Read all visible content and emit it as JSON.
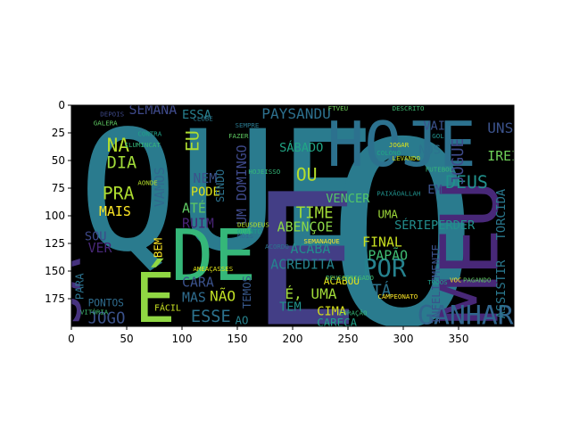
{
  "figure": {
    "image_background": "#000000",
    "x_ticks": [
      "0",
      "50",
      "100",
      "150",
      "200",
      "250",
      "300",
      "350"
    ],
    "y_ticks": [
      "0",
      "25",
      "50",
      "75",
      "100",
      "125",
      "150",
      "175"
    ],
    "x_tick_values": [
      0,
      50,
      100,
      150,
      200,
      250,
      300,
      350
    ],
    "y_tick_values": [
      0,
      25,
      50,
      75,
      100,
      125,
      150,
      175
    ],
    "xlim": [
      0,
      400
    ],
    "ylim": [
      0,
      200
    ],
    "y_inverted": true
  },
  "wordcloud": {
    "words": [
      {
        "text": "QUE",
        "x": 6,
        "y": 130,
        "size": 150,
        "color": "#2a7b8e",
        "rotate": 0
      },
      {
        "text": "O",
        "x": 230,
        "y": 198,
        "size": 230,
        "color": "#2a7b8e",
        "rotate": 0
      },
      {
        "text": "E",
        "x": 162,
        "y": 198,
        "size": 165,
        "color": "#433e86",
        "rotate": 0
      },
      {
        "text": "HOJE",
        "x": 231,
        "y": 55,
        "size": 56,
        "color": "#2c718e",
        "rotate": 0
      },
      {
        "text": "DE",
        "x": 90,
        "y": 158,
        "size": 64,
        "color": "#35b779",
        "rotate": 0
      },
      {
        "text": "É",
        "x": 57,
        "y": 196,
        "size": 62,
        "color": "#90d743",
        "rotate": 0
      },
      {
        "text": "JÁ",
        "x": 8,
        "y": 198,
        "size": 50,
        "color": "#46327e",
        "rotate": -90
      },
      {
        "text": "MEU",
        "x": 385,
        "y": 198,
        "size": 72,
        "color": "#482878",
        "rotate": -90
      },
      {
        "text": "GANHAR",
        "x": 313,
        "y": 198,
        "size": 24,
        "color": "#31668e",
        "rotate": 0
      },
      {
        "text": "POR",
        "x": 263,
        "y": 155,
        "size": 22,
        "color": "#26828e",
        "rotate": 0
      },
      {
        "text": "DEUS",
        "x": 338,
        "y": 75,
        "size": 16,
        "color": "#21918c",
        "rotate": 0
      },
      {
        "text": "JOGUE",
        "x": 354,
        "y": 72,
        "size": 14,
        "color": "#3e4a89",
        "rotate": -90
      },
      {
        "text": "UNS",
        "x": 376,
        "y": 25,
        "size": 13,
        "color": "#3b528b",
        "rotate": 0
      },
      {
        "text": "IREI",
        "x": 376,
        "y": 50,
        "size": 12,
        "color": "#6ece58",
        "rotate": 0
      },
      {
        "text": "NA",
        "x": 32,
        "y": 42,
        "size": 17,
        "color": "#b5de2b",
        "rotate": 0
      },
      {
        "text": "DIA",
        "x": 32,
        "y": 57,
        "size": 15,
        "color": "#a0da39",
        "rotate": 0
      },
      {
        "text": "PRA",
        "x": 28,
        "y": 85,
        "size": 16,
        "color": "#addc30",
        "rotate": 0
      },
      {
        "text": "MAIS",
        "x": 25,
        "y": 100,
        "size": 12,
        "color": "#fde725",
        "rotate": 0
      },
      {
        "text": "VAMOS",
        "x": 84,
        "y": 92,
        "size": 12,
        "color": "#31688e",
        "rotate": -90
      },
      {
        "text": "SEMANA",
        "x": 52,
        "y": 8,
        "size": 12,
        "color": "#3e4989",
        "rotate": 0
      },
      {
        "text": "ESSA",
        "x": 100,
        "y": 12,
        "size": 11,
        "color": "#277f8e",
        "rotate": 0
      },
      {
        "text": "PAYSANDU",
        "x": 172,
        "y": 12,
        "size": 13,
        "color": "#2d708e",
        "rotate": 0
      },
      {
        "text": "EU",
        "x": 115,
        "y": 42,
        "size": 16,
        "color": "#addc30",
        "rotate": -90
      },
      {
        "text": "NEM",
        "x": 110,
        "y": 70,
        "size": 12,
        "color": "#3b528b",
        "rotate": 0
      },
      {
        "text": "PODE",
        "x": 108,
        "y": 82,
        "size": 11,
        "color": "#dde318",
        "rotate": 0
      },
      {
        "text": "ATÉ",
        "x": 100,
        "y": 97,
        "size": 12,
        "color": "#5ec962",
        "rotate": 0
      },
      {
        "text": "RUIM",
        "x": 100,
        "y": 111,
        "size": 12,
        "color": "#482475",
        "rotate": 0
      },
      {
        "text": "UM DOMINGO",
        "x": 158,
        "y": 108,
        "size": 12,
        "color": "#3e4989",
        "rotate": -90
      },
      {
        "text": "SÁBADO",
        "x": 188,
        "y": 42,
        "size": 11,
        "color": "#21a585",
        "rotate": 0
      },
      {
        "text": "OU",
        "x": 203,
        "y": 68,
        "size": 16,
        "color": "#b5de2b",
        "rotate": 0
      },
      {
        "text": "NOS",
        "x": 314,
        "y": 44,
        "size": 11,
        "color": "#2c728e",
        "rotate": 0
      },
      {
        "text": "VAI",
        "x": 318,
        "y": 22,
        "size": 11,
        "color": "#3b528b",
        "rotate": 0
      },
      {
        "text": "VENCER",
        "x": 230,
        "y": 88,
        "size": 11,
        "color": "#52c569",
        "rotate": 0
      },
      {
        "text": "TIME",
        "x": 203,
        "y": 102,
        "size": 14,
        "color": "#a2da37",
        "rotate": 0
      },
      {
        "text": "ABENÇOE",
        "x": 186,
        "y": 114,
        "size": 12,
        "color": "#8bd646",
        "rotate": 0
      },
      {
        "text": "ACABA",
        "x": 198,
        "y": 134,
        "size": 12,
        "color": "#228c8d",
        "rotate": 0
      },
      {
        "text": "ACREDITA",
        "x": 180,
        "y": 148,
        "size": 12,
        "color": "#25838e",
        "rotate": 0
      },
      {
        "text": "FINAL",
        "x": 263,
        "y": 128,
        "size": 12,
        "color": "#c8e020",
        "rotate": 0
      },
      {
        "text": "PAPÃO",
        "x": 268,
        "y": 140,
        "size": 12,
        "color": "#3fbc73",
        "rotate": 0
      },
      {
        "text": "SÉRIE",
        "x": 292,
        "y": 112,
        "size": 11,
        "color": "#228d8d",
        "rotate": 0
      },
      {
        "text": "UMA",
        "x": 277,
        "y": 102,
        "size": 10,
        "color": "#9fda3a",
        "rotate": 0
      },
      {
        "text": "PERDER",
        "x": 325,
        "y": 112,
        "size": 11,
        "color": "#21918c",
        "rotate": 0
      },
      {
        "text": "TORCIDA",
        "x": 392,
        "y": 122,
        "size": 11,
        "color": "#2a788e",
        "rotate": -90
      },
      {
        "text": "ASSISTIR",
        "x": 392,
        "y": 193,
        "size": 11,
        "color": "#2a788e",
        "rotate": -90
      },
      {
        "text": "INFELIZMENTE",
        "x": 333,
        "y": 198,
        "size": 10,
        "color": "#3b528b",
        "rotate": -90
      },
      {
        "text": "EM",
        "x": 322,
        "y": 80,
        "size": 11,
        "color": "#3b528b",
        "rotate": 0
      },
      {
        "text": "TÁ",
        "x": 272,
        "y": 172,
        "size": 14,
        "color": "#2c738e",
        "rotate": 0
      },
      {
        "text": "É, UMA",
        "x": 193,
        "y": 175,
        "size": 13,
        "color": "#a0da39",
        "rotate": 0
      },
      {
        "text": "TEM",
        "x": 188,
        "y": 186,
        "size": 11,
        "color": "#21918c",
        "rotate": 0
      },
      {
        "text": "CIMA",
        "x": 222,
        "y": 190,
        "size": 11,
        "color": "#d8e219",
        "rotate": 0
      },
      {
        "text": "CARECA",
        "x": 222,
        "y": 200,
        "size": 10,
        "color": "#1fa188",
        "rotate": 0
      },
      {
        "text": "ACABOU",
        "x": 228,
        "y": 162,
        "size": 9,
        "color": "#e5e419",
        "rotate": 0
      },
      {
        "text": "CARA",
        "x": 100,
        "y": 164,
        "size": 12,
        "color": "#3b528b",
        "rotate": 0
      },
      {
        "text": "MAS",
        "x": 100,
        "y": 178,
        "size": 12,
        "color": "#2f6c8e",
        "rotate": 0
      },
      {
        "text": "NÃO",
        "x": 125,
        "y": 177,
        "size": 13,
        "color": "#c0df25",
        "rotate": 0
      },
      {
        "text": "ESSE",
        "x": 108,
        "y": 196,
        "size": 15,
        "color": "#2c728e",
        "rotate": 0
      },
      {
        "text": "AO",
        "x": 148,
        "y": 198,
        "size": 10,
        "color": "#26828e",
        "rotate": 0
      },
      {
        "text": "TEMOS",
        "x": 162,
        "y": 184,
        "size": 10,
        "color": "#38598c",
        "rotate": -90
      },
      {
        "text": "SENDO",
        "x": 138,
        "y": 88,
        "size": 10,
        "color": "#2c728e",
        "rotate": -90
      },
      {
        "text": "SOU",
        "x": 12,
        "y": 122,
        "size": 11,
        "color": "#3e4989",
        "rotate": 0
      },
      {
        "text": "VER",
        "x": 15,
        "y": 133,
        "size": 12,
        "color": "#482878",
        "rotate": 0
      },
      {
        "text": "BEM",
        "x": 82,
        "y": 138,
        "size": 10,
        "color": "#fde725",
        "rotate": -90
      },
      {
        "text": "PARA",
        "x": 11,
        "y": 176,
        "size": 10,
        "color": "#2c728e",
        "rotate": -90
      },
      {
        "text": "JOGO",
        "x": 15,
        "y": 197,
        "size": 14,
        "color": "#3b528b",
        "rotate": 0
      },
      {
        "text": "PONTOS",
        "x": 15,
        "y": 182,
        "size": 9,
        "color": "#2f6c8e",
        "rotate": 0
      },
      {
        "text": "FÁCIL",
        "x": 75,
        "y": 186,
        "size": 8,
        "color": "#c8e020",
        "rotate": 0
      },
      {
        "text": "JOGAR",
        "x": 287,
        "y": 38,
        "size": 6,
        "color": "#dde318",
        "rotate": 0
      },
      {
        "text": "SEMANAQUE",
        "x": 210,
        "y": 125,
        "size": 6,
        "color": "#fde725",
        "rotate": 0
      },
      {
        "text": "HOJEISSO",
        "x": 160,
        "y": 62,
        "size": 6,
        "color": "#35b779",
        "rotate": 0
      },
      {
        "text": "PAIXÃOALLAH",
        "x": 276,
        "y": 82,
        "size": 6,
        "color": "#21918c",
        "rotate": 0
      },
      {
        "text": "AMEAÇASSES",
        "x": 110,
        "y": 150,
        "size": 6,
        "color": "#dde318",
        "rotate": 0
      },
      {
        "text": "DEUSDEUS",
        "x": 150,
        "y": 110,
        "size": 6,
        "color": "#b5de2b",
        "rotate": 0
      },
      {
        "text": "VITÓRIA",
        "x": 8,
        "y": 189,
        "size": 6,
        "color": "#3fbc73",
        "rotate": 0
      },
      {
        "text": "VOC",
        "x": 342,
        "y": 160,
        "size": 6,
        "color": "#fde725",
        "rotate": 0
      },
      {
        "text": "PAGANDO",
        "x": 354,
        "y": 160,
        "size": 6,
        "color": "#5ec962",
        "rotate": 0
      },
      {
        "text": "ILUMINCAT",
        "x": 48,
        "y": 38,
        "size": 6,
        "color": "#35b779",
        "rotate": 0
      },
      {
        "text": "CLUBE",
        "x": 110,
        "y": 14,
        "size": 6,
        "color": "#2a788e",
        "rotate": 0
      },
      {
        "text": "FTVEU",
        "x": 232,
        "y": 5,
        "size": 6,
        "color": "#6ece58",
        "rotate": 0
      },
      {
        "text": "DESCRITO",
        "x": 290,
        "y": 5,
        "size": 6,
        "color": "#3fbc73",
        "rotate": 0
      },
      {
        "text": "CONTRA",
        "x": 60,
        "y": 28,
        "size": 6,
        "color": "#1fa188",
        "rotate": 0
      },
      {
        "text": "COLONO",
        "x": 276,
        "y": 45,
        "size": 6,
        "color": "#21a585",
        "rotate": 0
      },
      {
        "text": "FAZER",
        "x": 142,
        "y": 30,
        "size": 6,
        "color": "#5ec962",
        "rotate": 0
      },
      {
        "text": "MOIS",
        "x": 150,
        "y": 120,
        "size": 6,
        "color": "#31688e",
        "rotate": 0
      },
      {
        "text": "QUANTO",
        "x": 150,
        "y": 116,
        "size": 6,
        "color": "#1f9e89",
        "rotate": 0
      },
      {
        "text": "AONDE",
        "x": 60,
        "y": 72,
        "size": 6,
        "color": "#b5de2b",
        "rotate": 0
      },
      {
        "text": "GOL",
        "x": 326,
        "y": 30,
        "size": 6,
        "color": "#21918c",
        "rotate": 0
      },
      {
        "text": "LEVANDO",
        "x": 290,
        "y": 50,
        "size": 6,
        "color": "#c8e020",
        "rotate": 0
      },
      {
        "text": "FUTEBOL",
        "x": 320,
        "y": 60,
        "size": 6,
        "color": "#35b779",
        "rotate": 0
      },
      {
        "text": "GALERA",
        "x": 20,
        "y": 18,
        "size": 6,
        "color": "#5ec962",
        "rotate": 0
      },
      {
        "text": "SEMPRE",
        "x": 148,
        "y": 20,
        "size": 6,
        "color": "#2a788e",
        "rotate": 0
      },
      {
        "text": "DEPOIS",
        "x": 26,
        "y": 10,
        "size": 6,
        "color": "#3e4989",
        "rotate": 0
      },
      {
        "text": "TODOS",
        "x": 322,
        "y": 162,
        "size": 6,
        "color": "#1f9e89",
        "rotate": 0
      },
      {
        "text": "ACORDO",
        "x": 175,
        "y": 130,
        "size": 6,
        "color": "#2c728e",
        "rotate": 0
      },
      {
        "text": "DEUSOBRIGADO",
        "x": 230,
        "y": 158,
        "size": 6,
        "color": "#3fbc73",
        "rotate": 0
      },
      {
        "text": "CAMPEONATO",
        "x": 277,
        "y": 175,
        "size": 6,
        "color": "#fde725",
        "rotate": 0
      },
      {
        "text": "CORAÇÃO",
        "x": 242,
        "y": 190,
        "size": 6,
        "color": "#35b779",
        "rotate": 0
      }
    ]
  }
}
